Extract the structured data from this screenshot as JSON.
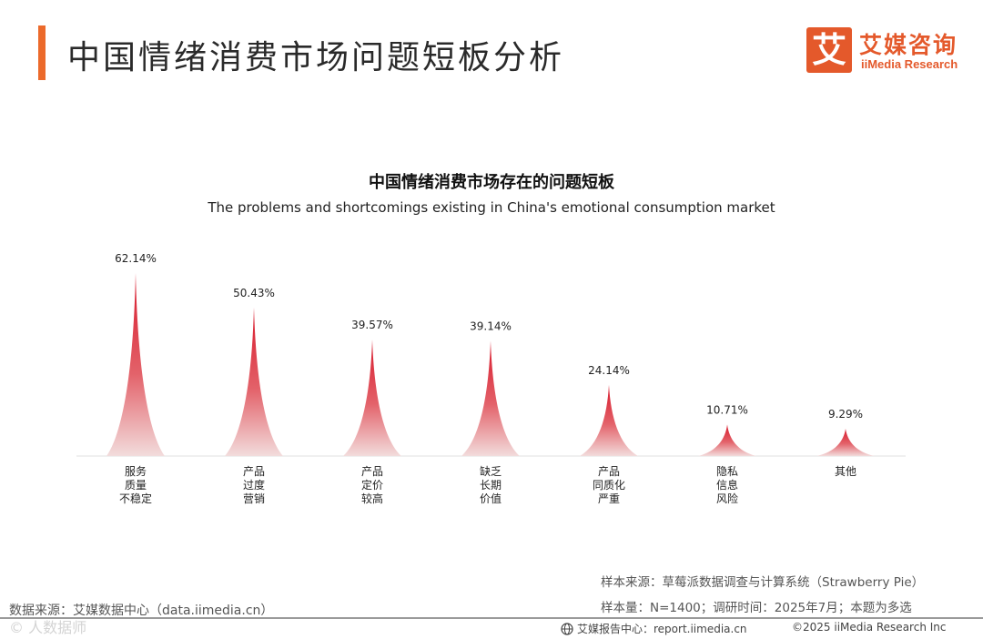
{
  "page": {
    "title": "中国情绪消费市场问题短板分析"
  },
  "brand": {
    "mark": "艾",
    "name_cn": "艾媒咨询",
    "name_en": "iiMedia Research",
    "color": "#e4592b"
  },
  "chart_data": {
    "type": "bar",
    "title": "中国情绪消费市场存在的问题短板",
    "subtitle": "The problems and shortcomings existing in China's emotional consumption market",
    "categories": [
      [
        "服务",
        "质量",
        "不稳定"
      ],
      [
        "产品",
        "过度",
        "营销"
      ],
      [
        "产品",
        "定价",
        "较高"
      ],
      [
        "缺乏",
        "长期",
        "价值"
      ],
      [
        "产品",
        "同质化",
        "严重"
      ],
      [
        "隐私",
        "信息",
        "风险"
      ],
      [
        "其他"
      ]
    ],
    "values": [
      62.14,
      50.43,
      39.57,
      39.14,
      24.14,
      10.71,
      9.29
    ],
    "value_labels": [
      "62.14%",
      "50.43%",
      "39.57%",
      "39.14%",
      "24.14%",
      "10.71%",
      "9.29%"
    ],
    "unit": "%",
    "ylim": [
      0,
      62.14
    ],
    "colors": {
      "bar_top": "#d8192b",
      "bar_bottom": "#f2dcdc"
    }
  },
  "notes": {
    "sample_source": "样本来源：草莓派数据调查与计算系统（Strawberry Pie）",
    "sample_size": "样本量：N=1400；调研时间：2025年7月；本题为多选",
    "data_source": "数据来源：艾媒数据中心（data.iimedia.cn）",
    "watermark": "© 人数据师"
  },
  "footer": {
    "center": "艾媒报告中心：report.iimedia.cn",
    "right": "©2025  iiMedia Research  Inc"
  }
}
